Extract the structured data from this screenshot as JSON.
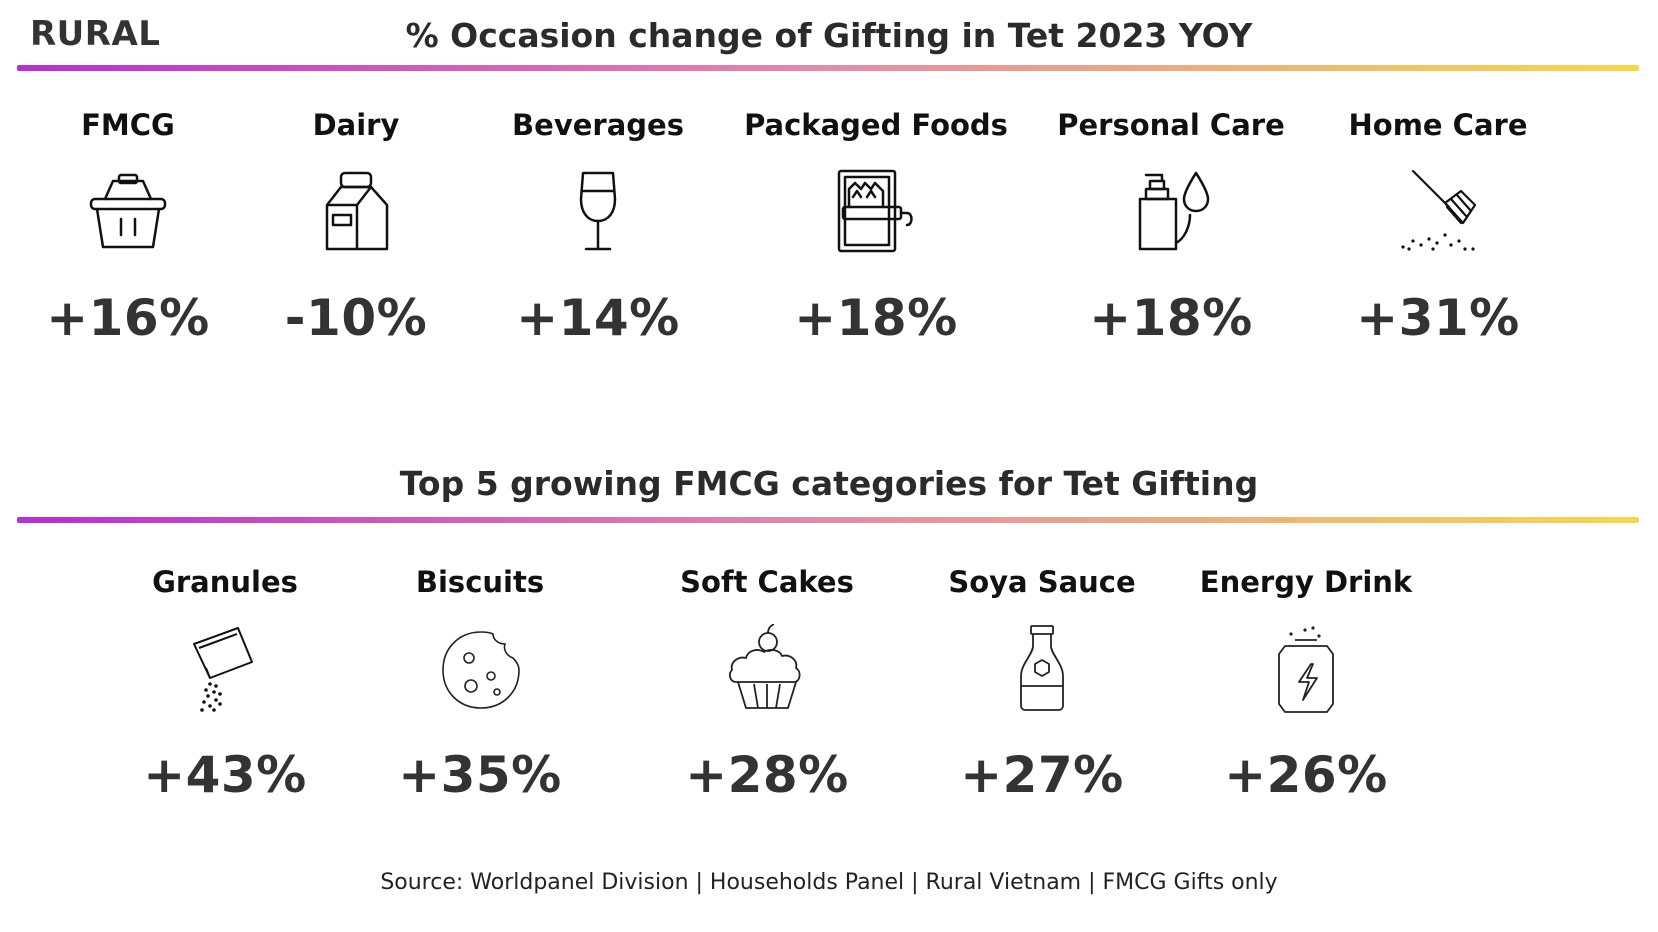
{
  "header": {
    "region": "RURAL",
    "title": "% Occasion change of Gifting in Tet 2023 YOY"
  },
  "gradient": {
    "start": "#b72fd3",
    "mid": "#e58aa8",
    "end": "#f6d84a"
  },
  "categories": [
    {
      "label": "FMCG",
      "value": "+16%",
      "icon": "basket-icon"
    },
    {
      "label": "Dairy",
      "value": "-10%",
      "icon": "milk-carton-icon"
    },
    {
      "label": "Beverages",
      "value": "+14%",
      "icon": "wine-glass-icon"
    },
    {
      "label": "Packaged Foods",
      "value": "+18%",
      "icon": "canned-sardines-icon"
    },
    {
      "label": "Personal Care",
      "value": "+18%",
      "icon": "soap-dispenser-icon"
    },
    {
      "label": "Home Care",
      "value": "+31%",
      "icon": "broom-icon"
    }
  ],
  "top5": {
    "title": "Top 5 growing FMCG categories for Tet Gifting",
    "items": [
      {
        "label": "Granules",
        "value": "+43%",
        "icon": "granule-sachet-icon"
      },
      {
        "label": "Biscuits",
        "value": "+35%",
        "icon": "cookie-icon"
      },
      {
        "label": "Soft Cakes",
        "value": "+28%",
        "icon": "cupcake-icon"
      },
      {
        "label": "Soya Sauce",
        "value": "+27%",
        "icon": "sauce-bottle-icon"
      },
      {
        "label": "Energy Drink",
        "value": "+26%",
        "icon": "energy-can-icon"
      }
    ]
  },
  "footer": {
    "source": "Source: Worldpanel Division | Households Panel | Rural Vietnam | FMCG Gifts only"
  }
}
